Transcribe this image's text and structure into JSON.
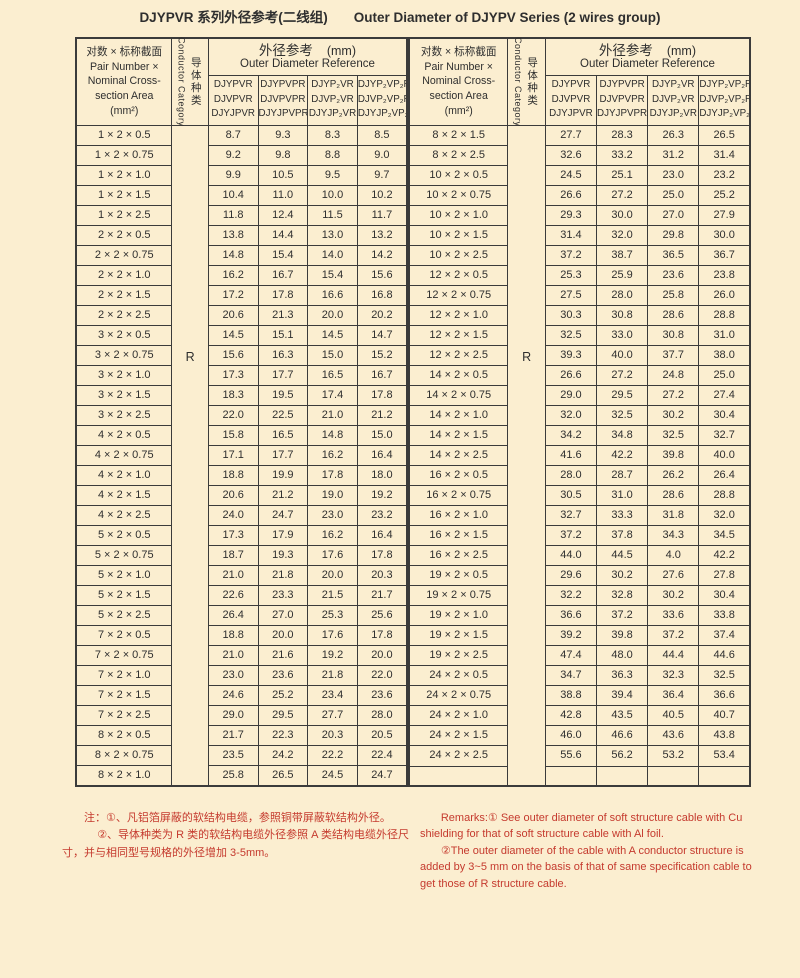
{
  "title": {
    "cn": "DJYPVR 系列外径参考(二线组)",
    "en": "Outer Diameter of DJYPV Series (2 wires group)"
  },
  "colors": {
    "background": "#FBEED0",
    "table_line": "#3B3B3B",
    "text": "#2E2E2E",
    "note_red": "#C53A2E"
  },
  "header": {
    "spec_lines": [
      "对数 × 标称截面",
      "Pair Number ×",
      "Nominal Cross-",
      "section Area",
      "(mm²)"
    ],
    "conductor_en": "Conductor Category",
    "conductor_cn": "导体种类",
    "od_cn": "外径参考",
    "od_unit": "(mm)",
    "od_en": "Outer Diameter Reference",
    "models": [
      [
        "DJYPVR",
        "DJVPVR",
        "DJYJPVR"
      ],
      [
        "DJYPVPR",
        "DJVPVPR",
        "DJYJPVPR"
      ],
      [
        "DJYP₂VR",
        "DJVP₂VR",
        "DJYJP₂VR"
      ],
      [
        "DJYP₂VP₂R",
        "DJVP₂VP₂R",
        "DJYJP₂VP₂R"
      ]
    ]
  },
  "left_table": {
    "conductor_category": "R",
    "rows": [
      {
        "spec": "1 × 2 × 0.5",
        "values": [
          "8.7",
          "9.3",
          "8.3",
          "8.5"
        ]
      },
      {
        "spec": "1 × 2 × 0.75",
        "values": [
          "9.2",
          "9.8",
          "8.8",
          "9.0"
        ]
      },
      {
        "spec": "1 × 2 × 1.0",
        "values": [
          "9.9",
          "10.5",
          "9.5",
          "9.7"
        ]
      },
      {
        "spec": "1 × 2 × 1.5",
        "values": [
          "10.4",
          "11.0",
          "10.0",
          "10.2"
        ]
      },
      {
        "spec": "1 × 2 × 2.5",
        "values": [
          "11.8",
          "12.4",
          "11.5",
          "11.7"
        ]
      },
      {
        "spec": "2 × 2 × 0.5",
        "values": [
          "13.8",
          "14.4",
          "13.0",
          "13.2"
        ]
      },
      {
        "spec": "2 × 2 × 0.75",
        "values": [
          "14.8",
          "15.4",
          "14.0",
          "14.2"
        ]
      },
      {
        "spec": "2 × 2 × 1.0",
        "values": [
          "16.2",
          "16.7",
          "15.4",
          "15.6"
        ]
      },
      {
        "spec": "2 × 2 × 1.5",
        "values": [
          "17.2",
          "17.8",
          "16.6",
          "16.8"
        ]
      },
      {
        "spec": "2 × 2 × 2.5",
        "values": [
          "20.6",
          "21.3",
          "20.0",
          "20.2"
        ]
      },
      {
        "spec": "3 × 2 × 0.5",
        "values": [
          "14.5",
          "15.1",
          "14.5",
          "14.7"
        ]
      },
      {
        "spec": "3 × 2 × 0.75",
        "values": [
          "15.6",
          "16.3",
          "15.0",
          "15.2"
        ]
      },
      {
        "spec": "3 × 2 × 1.0",
        "values": [
          "17.3",
          "17.7",
          "16.5",
          "16.7"
        ]
      },
      {
        "spec": "3 × 2 × 1.5",
        "values": [
          "18.3",
          "19.5",
          "17.4",
          "17.8"
        ]
      },
      {
        "spec": "3 × 2 × 2.5",
        "values": [
          "22.0",
          "22.5",
          "21.0",
          "21.2"
        ]
      },
      {
        "spec": "4 × 2 × 0.5",
        "values": [
          "15.8",
          "16.5",
          "14.8",
          "15.0"
        ]
      },
      {
        "spec": "4 × 2 × 0.75",
        "values": [
          "17.1",
          "17.7",
          "16.2",
          "16.4"
        ]
      },
      {
        "spec": "4 × 2 × 1.0",
        "values": [
          "18.8",
          "19.9",
          "17.8",
          "18.0"
        ]
      },
      {
        "spec": "4 × 2 × 1.5",
        "values": [
          "20.6",
          "21.2",
          "19.0",
          "19.2"
        ]
      },
      {
        "spec": "4 × 2 × 2.5",
        "values": [
          "24.0",
          "24.7",
          "23.0",
          "23.2"
        ]
      },
      {
        "spec": "5 × 2 × 0.5",
        "values": [
          "17.3",
          "17.9",
          "16.2",
          "16.4"
        ]
      },
      {
        "spec": "5 × 2 × 0.75",
        "values": [
          "18.7",
          "19.3",
          "17.6",
          "17.8"
        ]
      },
      {
        "spec": "5 × 2 × 1.0",
        "values": [
          "21.0",
          "21.8",
          "20.0",
          "20.3"
        ]
      },
      {
        "spec": "5 × 2 × 1.5",
        "values": [
          "22.6",
          "23.3",
          "21.5",
          "21.7"
        ]
      },
      {
        "spec": "5 × 2 × 2.5",
        "values": [
          "26.4",
          "27.0",
          "25.3",
          "25.6"
        ]
      },
      {
        "spec": "7 × 2 × 0.5",
        "values": [
          "18.8",
          "20.0",
          "17.6",
          "17.8"
        ]
      },
      {
        "spec": "7 × 2 × 0.75",
        "values": [
          "21.0",
          "21.6",
          "19.2",
          "20.0"
        ]
      },
      {
        "spec": "7 × 2 × 1.0",
        "values": [
          "23.0",
          "23.6",
          "21.8",
          "22.0"
        ]
      },
      {
        "spec": "7 × 2 × 1.5",
        "values": [
          "24.6",
          "25.2",
          "23.4",
          "23.6"
        ]
      },
      {
        "spec": "7 × 2 × 2.5",
        "values": [
          "29.0",
          "29.5",
          "27.7",
          "28.0"
        ]
      },
      {
        "spec": "8 × 2 × 0.5",
        "values": [
          "21.7",
          "22.3",
          "20.3",
          "20.5"
        ]
      },
      {
        "spec": "8 × 2 × 0.75",
        "values": [
          "23.5",
          "24.2",
          "22.2",
          "22.4"
        ]
      },
      {
        "spec": "8 × 2 × 1.0",
        "values": [
          "25.8",
          "26.5",
          "24.5",
          "24.7"
        ]
      }
    ]
  },
  "right_table": {
    "conductor_category": "R",
    "rows": [
      {
        "spec": "8 × 2 × 1.5",
        "values": [
          "27.7",
          "28.3",
          "26.3",
          "26.5"
        ]
      },
      {
        "spec": "8 × 2 × 2.5",
        "values": [
          "32.6",
          "33.2",
          "31.2",
          "31.4"
        ]
      },
      {
        "spec": "10 × 2 × 0.5",
        "values": [
          "24.5",
          "25.1",
          "23.0",
          "23.2"
        ]
      },
      {
        "spec": "10 × 2 × 0.75",
        "values": [
          "26.6",
          "27.2",
          "25.0",
          "25.2"
        ]
      },
      {
        "spec": "10 × 2 × 1.0",
        "values": [
          "29.3",
          "30.0",
          "27.0",
          "27.9"
        ]
      },
      {
        "spec": "10 × 2 × 1.5",
        "values": [
          "31.4",
          "32.0",
          "29.8",
          "30.0"
        ]
      },
      {
        "spec": "10 × 2 × 2.5",
        "values": [
          "37.2",
          "38.7",
          "36.5",
          "36.7"
        ]
      },
      {
        "spec": "12 × 2 × 0.5",
        "values": [
          "25.3",
          "25.9",
          "23.6",
          "23.8"
        ]
      },
      {
        "spec": "12 × 2 × 0.75",
        "values": [
          "27.5",
          "28.0",
          "25.8",
          "26.0"
        ]
      },
      {
        "spec": "12 × 2 × 1.0",
        "values": [
          "30.3",
          "30.8",
          "28.6",
          "28.8"
        ]
      },
      {
        "spec": "12 × 2 × 1.5",
        "values": [
          "32.5",
          "33.0",
          "30.8",
          "31.0"
        ]
      },
      {
        "spec": "12 × 2 × 2.5",
        "values": [
          "39.3",
          "40.0",
          "37.7",
          "38.0"
        ]
      },
      {
        "spec": "14 × 2 × 0.5",
        "values": [
          "26.6",
          "27.2",
          "24.8",
          "25.0"
        ]
      },
      {
        "spec": "14 × 2 × 0.75",
        "values": [
          "29.0",
          "29.5",
          "27.2",
          "27.4"
        ]
      },
      {
        "spec": "14 × 2 × 1.0",
        "values": [
          "32.0",
          "32.5",
          "30.2",
          "30.4"
        ]
      },
      {
        "spec": "14 × 2 × 1.5",
        "values": [
          "34.2",
          "34.8",
          "32.5",
          "32.7"
        ]
      },
      {
        "spec": "14 × 2 × 2.5",
        "values": [
          "41.6",
          "42.2",
          "39.8",
          "40.0"
        ]
      },
      {
        "spec": "16 × 2 × 0.5",
        "values": [
          "28.0",
          "28.7",
          "26.2",
          "26.4"
        ]
      },
      {
        "spec": "16 × 2 × 0.75",
        "values": [
          "30.5",
          "31.0",
          "28.6",
          "28.8"
        ]
      },
      {
        "spec": "16 × 2 × 1.0",
        "values": [
          "32.7",
          "33.3",
          "31.8",
          "32.0"
        ]
      },
      {
        "spec": "16 × 2 × 1.5",
        "values": [
          "37.2",
          "37.8",
          "34.3",
          "34.5"
        ]
      },
      {
        "spec": "16 × 2 × 2.5",
        "values": [
          "44.0",
          "44.5",
          "4.0",
          "42.2"
        ]
      },
      {
        "spec": "19 × 2 × 0.5",
        "values": [
          "29.6",
          "30.2",
          "27.6",
          "27.8"
        ]
      },
      {
        "spec": "19 × 2 × 0.75",
        "values": [
          "32.2",
          "32.8",
          "30.2",
          "30.4"
        ]
      },
      {
        "spec": "19 × 2 × 1.0",
        "values": [
          "36.6",
          "37.2",
          "33.6",
          "33.8"
        ]
      },
      {
        "spec": "19 × 2 × 1.5",
        "values": [
          "39.2",
          "39.8",
          "37.2",
          "37.4"
        ]
      },
      {
        "spec": "19 × 2 × 2.5",
        "values": [
          "47.4",
          "48.0",
          "44.4",
          "44.6"
        ]
      },
      {
        "spec": "24 × 2 × 0.5",
        "values": [
          "34.7",
          "36.3",
          "32.3",
          "32.5"
        ]
      },
      {
        "spec": "24 × 2 × 0.75",
        "values": [
          "38.8",
          "39.4",
          "36.4",
          "36.6"
        ]
      },
      {
        "spec": "24 × 2 × 1.0",
        "values": [
          "42.8",
          "43.5",
          "40.5",
          "40.7"
        ]
      },
      {
        "spec": "24 × 2 × 1.5",
        "values": [
          "46.0",
          "46.6",
          "43.6",
          "43.8"
        ]
      },
      {
        "spec": "24 × 2 × 2.5",
        "values": [
          "55.6",
          "56.2",
          "53.2",
          "53.4"
        ]
      },
      {
        "spec": "",
        "values": [
          "",
          "",
          "",
          ""
        ]
      }
    ]
  },
  "notes": {
    "cn": [
      "注：①、凡铝箔屏蔽的软结构电缆，参照铜带屏蔽软结构外径。",
      "②、导体种类为 R 类的软结构电缆外径参照 A 类结构电缆外径尺寸，并与相同型号规格的外径增加 3-5mm。"
    ],
    "en": [
      "Remarks:① See outer diameter of soft structure cable with Cu shielding for that of soft structure cable with Al foil.",
      "②The outer diameter of the cable with A conductor structure is added by 3~5 mm on the basis of that of same specification cable to get those of R structure cable."
    ]
  }
}
